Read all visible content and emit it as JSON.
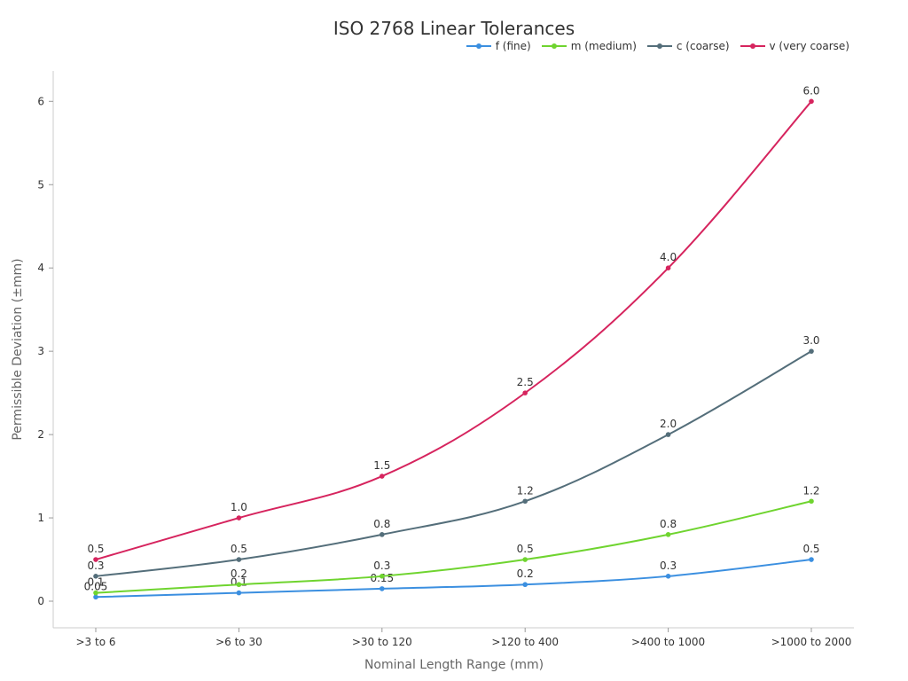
{
  "chart_data": {
    "type": "line",
    "title": "ISO 2768 Linear Tolerances",
    "xlabel": "Nominal Length Range (mm)",
    "ylabel": "Permissible Deviation (±mm)",
    "categories": [
      ">3 to 6",
      ">6 to 30",
      ">30 to 120",
      ">120 to 400",
      ">400 to 1000",
      ">1000 to 2000"
    ],
    "ylim": [
      -0.3,
      6.35
    ],
    "yticks": [
      0,
      1,
      2,
      3,
      4,
      5,
      6
    ],
    "grid": false,
    "legend_position": "top-right",
    "series": [
      {
        "name": "f (fine)",
        "color": "#3b8fe0",
        "values": [
          0.05,
          0.1,
          0.15,
          0.2,
          0.3,
          0.5
        ],
        "labels": [
          "0.05",
          "0.1",
          "0.15",
          "0.2",
          "0.3",
          "0.5"
        ]
      },
      {
        "name": "m (medium)",
        "color": "#6fd42f",
        "values": [
          0.1,
          0.2,
          0.3,
          0.5,
          0.8,
          1.2
        ],
        "labels": [
          "0.1",
          "0.2",
          "0.3",
          "0.5",
          "0.8",
          "1.2"
        ]
      },
      {
        "name": "c (coarse)",
        "color": "#546e7a",
        "values": [
          0.3,
          0.5,
          0.8,
          1.2,
          2.0,
          3.0
        ],
        "labels": [
          "0.3",
          "0.5",
          "0.8",
          "1.2",
          "2.0",
          "3.0"
        ]
      },
      {
        "name": "v (very coarse)",
        "color": "#d6245e",
        "values": [
          0.5,
          1.0,
          1.5,
          2.5,
          4.0,
          6.0
        ],
        "labels": [
          "0.5",
          "1.0",
          "1.5",
          "2.5",
          "4.0",
          "6.0"
        ]
      }
    ]
  }
}
